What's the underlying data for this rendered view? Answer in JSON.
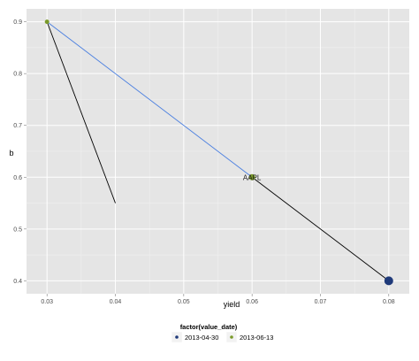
{
  "chart_data": {
    "type": "scatter",
    "xlabel": "yield",
    "ylabel": "b",
    "xlim": [
      0.027,
      0.083
    ],
    "ylim": [
      0.375,
      0.925
    ],
    "x_ticks": [
      "0.03",
      "0.04",
      "0.05",
      "0.06",
      "0.07",
      "0.08"
    ],
    "y_ticks": [
      "0.4",
      "0.5",
      "0.6",
      "0.7",
      "0.8",
      "0.9"
    ],
    "grid": true,
    "legend_position": "bottom",
    "legend_title": "factor(value_date)",
    "legend_entries": [
      {
        "label": "2013-04-30",
        "color": "#1f3a7a"
      },
      {
        "label": "2013-06-13",
        "color": "#7a9a2a"
      }
    ],
    "points": [
      {
        "x": 0.03,
        "y": 0.9,
        "group": "2013-06-13",
        "size": "small"
      },
      {
        "x": 0.06,
        "y": 0.6,
        "group": "2013-06-13",
        "size": "medium"
      },
      {
        "x": 0.08,
        "y": 0.4,
        "group": "2013-04-30",
        "size": "large"
      }
    ],
    "segments": [
      {
        "from": [
          0.03,
          0.9
        ],
        "to": [
          0.04,
          0.55
        ],
        "color": "#000000"
      },
      {
        "from": [
          0.03,
          0.9
        ],
        "to": [
          0.06,
          0.6
        ],
        "color": "#4a7fe0"
      },
      {
        "from": [
          0.06,
          0.6
        ],
        "to": [
          0.08,
          0.4
        ],
        "color": "#000000"
      }
    ],
    "annotations": [
      {
        "text": "AAPL",
        "x": 0.06,
        "y": 0.6
      }
    ]
  },
  "colors": {
    "panel_bg": "#e5e5e5",
    "grid_major": "#ffffff",
    "grid_minor": "#f2f2f2"
  }
}
